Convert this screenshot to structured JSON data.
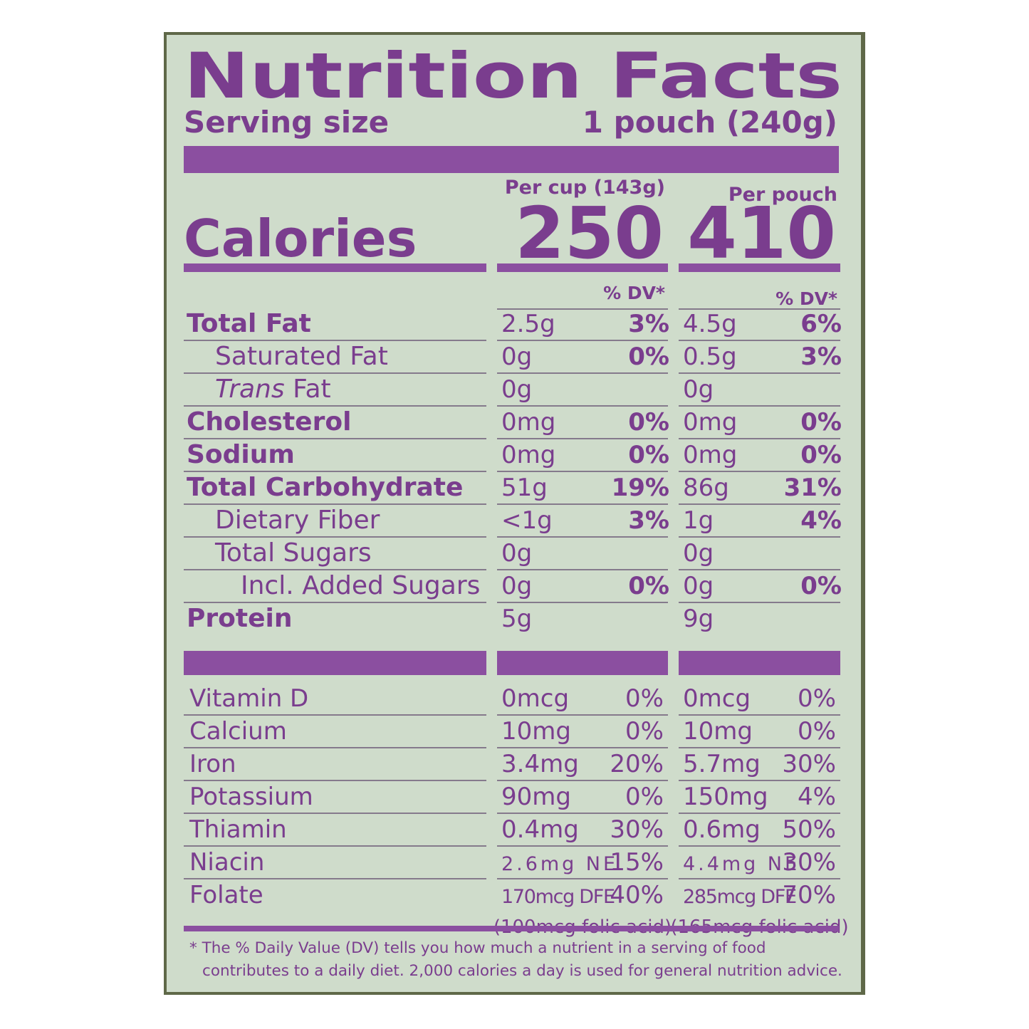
{
  "title": "Nutrition Facts",
  "serving": {
    "label": "Serving size",
    "value": "1 pouch (240g)"
  },
  "columns": [
    {
      "header": "Per cup (143g)",
      "calories": "250",
      "dv_header": "% DV*"
    },
    {
      "header": "Per pouch",
      "calories": "410",
      "dv_header": "% DV*"
    }
  ],
  "calories_label": "Calories",
  "nutrients": [
    {
      "name": "Total Fat",
      "bold": true,
      "indent": 0,
      "cup": [
        "2.5g",
        "3%"
      ],
      "pouch": [
        "4.5g",
        "6%"
      ]
    },
    {
      "name": "Saturated Fat",
      "bold": false,
      "indent": 1,
      "cup": [
        "0g",
        "0%"
      ],
      "pouch": [
        "0.5g",
        "3%"
      ]
    },
    {
      "italic_prefix": "Trans",
      "name": " Fat",
      "bold": false,
      "indent": 1,
      "cup": [
        "0g"
      ],
      "pouch": [
        "0g"
      ]
    },
    {
      "name": "Cholesterol",
      "bold": true,
      "indent": 0,
      "cup": [
        "0mg",
        "0%"
      ],
      "pouch": [
        "0mg",
        "0%"
      ]
    },
    {
      "name": "Sodium",
      "bold": true,
      "indent": 0,
      "cup": [
        "0mg",
        "0%"
      ],
      "pouch": [
        "0mg",
        "0%"
      ]
    },
    {
      "name": "Total Carbohydrate",
      "bold": true,
      "indent": 0,
      "cup": [
        "51g",
        "19%"
      ],
      "pouch": [
        "86g",
        "31%"
      ]
    },
    {
      "name": "Dietary Fiber",
      "bold": false,
      "indent": 1,
      "cup": [
        "<1g",
        "3%"
      ],
      "pouch": [
        "1g",
        "4%"
      ]
    },
    {
      "name": "Total Sugars",
      "bold": false,
      "indent": 1,
      "cup": [
        "0g"
      ],
      "pouch": [
        "0g"
      ]
    },
    {
      "name": "Incl. Added Sugars",
      "bold": false,
      "indent": 2,
      "cup": [
        "0g",
        "0%"
      ],
      "pouch": [
        "0g",
        "0%"
      ]
    },
    {
      "name": "Protein",
      "bold": true,
      "indent": 0,
      "cup": [
        "5g"
      ],
      "pouch": [
        "9g"
      ]
    }
  ],
  "vitamins": [
    {
      "name": "Vitamin D",
      "cup": [
        "0mcg",
        "0%"
      ],
      "pouch": [
        "0mcg",
        "0%"
      ]
    },
    {
      "name": "Calcium",
      "cup": [
        "10mg",
        "0%"
      ],
      "pouch": [
        "10mg",
        "0%"
      ]
    },
    {
      "name": "Iron",
      "cup": [
        "3.4mg",
        "20%"
      ],
      "pouch": [
        "5.7mg",
        "30%"
      ]
    },
    {
      "name": "Potassium",
      "cup": [
        "90mg",
        "0%"
      ],
      "pouch": [
        "150mg",
        "4%"
      ]
    },
    {
      "name": "Thiamin",
      "cup": [
        "0.4mg",
        "30%"
      ],
      "pouch": [
        "0.6mg",
        "50%"
      ]
    },
    {
      "name": "Niacin",
      "cup": [
        "2.6mg NE",
        "15%"
      ],
      "pouch": [
        "4.4mg NE",
        "30%"
      ]
    },
    {
      "name": "Folate",
      "cup": [
        "170mcg DFE",
        "40%"
      ],
      "pouch": [
        "285mcg DFE",
        "70%"
      ],
      "cup_note": "(100mcg folic acid)",
      "pouch_note": "(165mcg folic acid)"
    }
  ],
  "footnote": [
    "* The % Daily Value (DV) tells you how much a nutrient in a serving of food",
    "contributes to a daily diet. 2,000 calories a day is used for general nutrition advice."
  ]
}
